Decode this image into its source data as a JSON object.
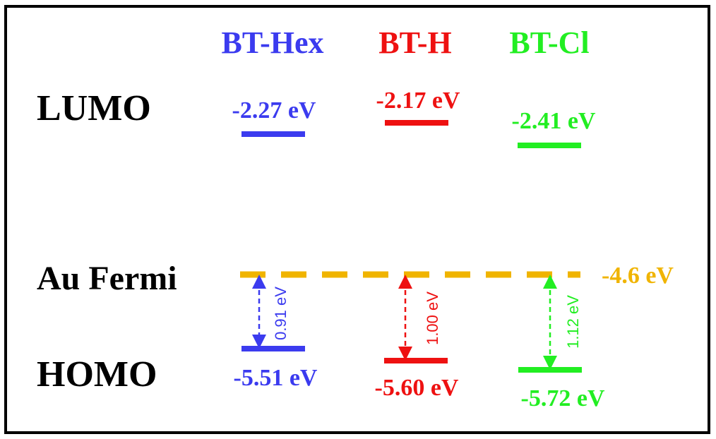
{
  "molecules": [
    {
      "name": "BT-Hex",
      "color": "#3b3bef",
      "lumo": "-2.27 eV",
      "homo": "-5.51 eV",
      "gap": "0.91 eV"
    },
    {
      "name": "BT-H",
      "color": "#ee1111",
      "lumo": "-2.17 eV",
      "homo": "-5.60 eV",
      "gap": "1.00 eV"
    },
    {
      "name": "BT-Cl",
      "color": "#22ee22",
      "lumo": "-2.41 eV",
      "homo": "-5.72 eV",
      "gap": "1.12 eV"
    }
  ],
  "row_labels": {
    "lumo": "LUMO",
    "fermi": "Au Fermi",
    "homo": "HOMO"
  },
  "fermi": {
    "value": "-4.6 eV",
    "color": "#f0b400"
  },
  "text_color": "#000000"
}
